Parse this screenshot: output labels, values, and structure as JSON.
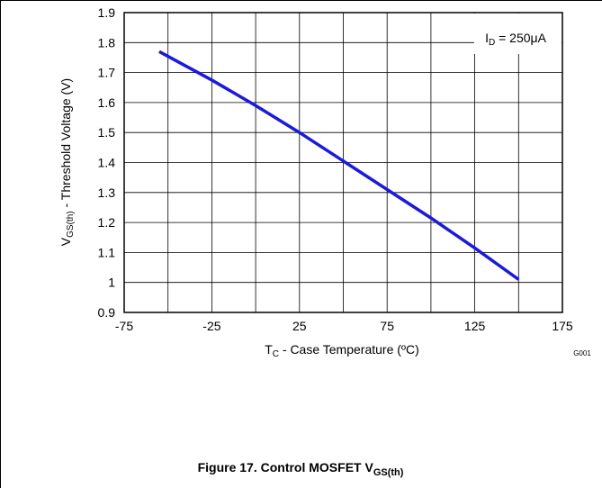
{
  "chart_data": {
    "type": "line",
    "x": [
      -55,
      -25,
      0,
      25,
      50,
      75,
      100,
      125,
      150
    ],
    "series": [
      {
        "name": "I_D = 250μA",
        "color": "#1a1adc",
        "values": [
          1.77,
          1.675,
          1.59,
          1.5,
          1.405,
          1.31,
          1.215,
          1.115,
          1.01
        ]
      }
    ],
    "xlim": [
      -75,
      175
    ],
    "xticks": [
      -75,
      -25,
      25,
      75,
      125,
      175
    ],
    "x_minor_ticks": [
      -50,
      0,
      50,
      100,
      150
    ],
    "ylim": [
      0.9,
      1.9
    ],
    "yticks": [
      0.9,
      1,
      1.1,
      1.2,
      1.3,
      1.4,
      1.5,
      1.6,
      1.7,
      1.8,
      1.9
    ],
    "grid": true,
    "annotation": {
      "main": "I",
      "sub": "D",
      "rest": " = 250μA"
    },
    "xlabel": {
      "main": "T",
      "sub": "C",
      "rest": " - Case Temperature (ºC)"
    },
    "ylabel": {
      "main": "V",
      "sub": "GS(th)",
      "rest": " - Threshold Voltage (V)"
    },
    "code": "G001",
    "caption": {
      "main": "Figure 17. Control MOSFET V",
      "sub": "GS(th)"
    }
  }
}
